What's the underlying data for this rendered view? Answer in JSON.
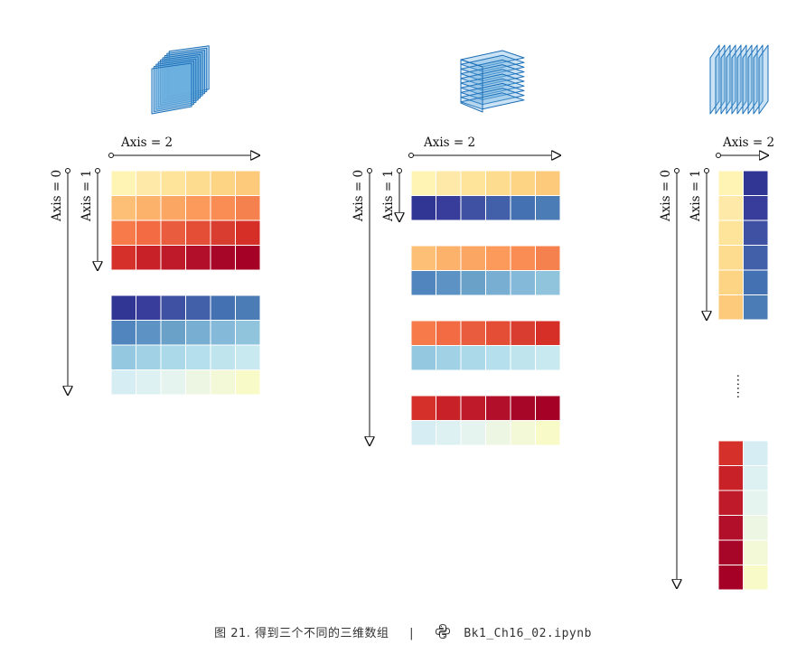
{
  "labels": {
    "axis0": "Axis = 0",
    "axis1": "Axis = 1",
    "axis2": "Axis = 2",
    "ellipsis": "......"
  },
  "caption": {
    "figure": "图 21. 得到三个不同的三维数组",
    "separator": "|",
    "notebook": "Bk1_Ch16_02.ipynb",
    "icon": "python-logo-icon"
  },
  "colors": {
    "warm": [
      [
        "#fff4b4",
        "#fee9a8",
        "#fee39b",
        "#fddb8f",
        "#fdd384",
        "#fdc97a"
      ],
      [
        "#fdbe76",
        "#fdb26c",
        "#fca663",
        "#fc9a5b",
        "#f98d53",
        "#f5814e"
      ],
      [
        "#f67a4a",
        "#f26b43",
        "#ea5c3e",
        "#e44e37",
        "#d83d2f",
        "#d52f27"
      ],
      [
        "#d6302a",
        "#c92128",
        "#be1a2a",
        "#b10f2a",
        "#a80628",
        "#a50026"
      ]
    ],
    "cool": [
      [
        "#313695",
        "#383d9b",
        "#3f51a3",
        "#4260a9",
        "#4471b1",
        "#4c7cb6"
      ],
      [
        "#5185bd",
        "#5d93c4",
        "#6aa1c9",
        "#78aed2",
        "#84b9da",
        "#90c4dd"
      ],
      [
        "#94c8e0",
        "#a1d1e5",
        "#abd9e9",
        "#b5dfec",
        "#bfe4ee",
        "#c8e9f0"
      ],
      [
        "#d6edf4",
        "#ddf1f3",
        "#e5f4ee",
        "#ecf6e3",
        "#f3f8d6",
        "#f8fac7"
      ]
    ]
  }
}
